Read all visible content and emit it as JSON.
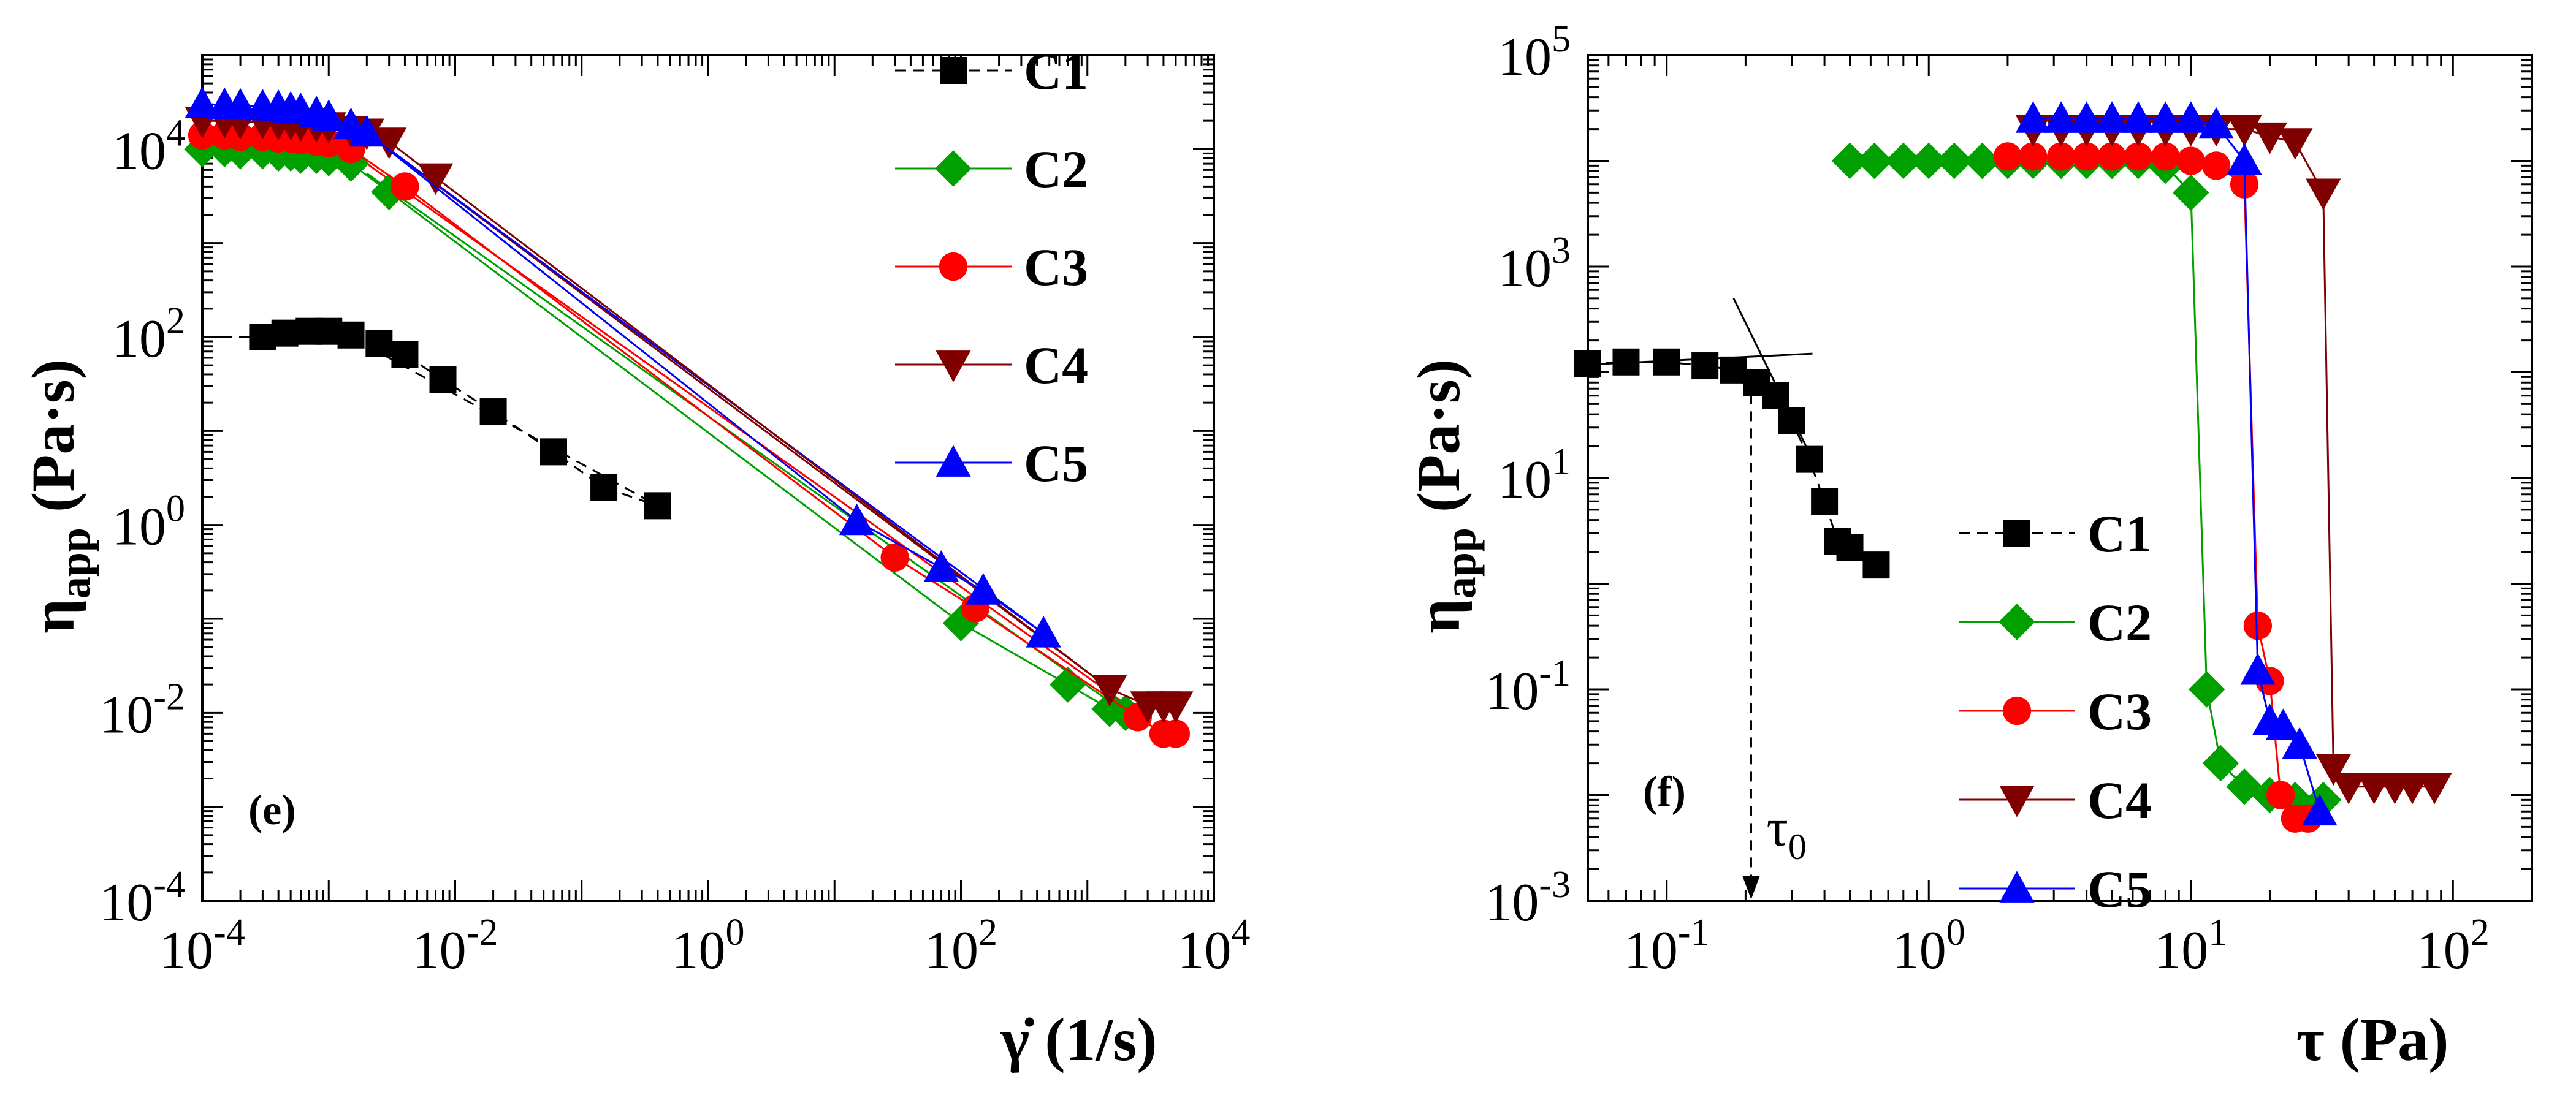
{
  "chart_data": [
    {
      "type": "scatter",
      "panel_label": "(e)",
      "scale": "log-log",
      "xlabel": "γ̇ (1/s)",
      "ylabel": "η_app (Pa·s)",
      "xlim": [
        0.0001,
        10000
      ],
      "ylim": [
        0.0001,
        100000
      ],
      "x_ticks": [
        {
          "base": "10",
          "exp": "-4"
        },
        {
          "base": "10",
          "exp": "-2"
        },
        {
          "base": "10",
          "exp": "0"
        },
        {
          "base": "10",
          "exp": "2"
        },
        {
          "base": "10",
          "exp": "4"
        }
      ],
      "y_ticks": [
        {
          "base": "10",
          "exp": "-4"
        },
        {
          "base": "10",
          "exp": "-2"
        },
        {
          "base": "10",
          "exp": "0"
        },
        {
          "base": "10",
          "exp": "2"
        },
        {
          "base": "10",
          "exp": "4"
        }
      ],
      "legend": {
        "position": "top-right"
      },
      "series": [
        {
          "name": "C1",
          "color": "#000000",
          "marker": "square",
          "x": [
            0.0003,
            0.00045,
            0.0007,
            0.001,
            0.0015,
            0.0025,
            0.004,
            0.008,
            0.02,
            0.06,
            0.15,
            0.4
          ],
          "y": [
            100,
            110,
            115,
            115,
            105,
            85,
            65,
            35,
            16,
            6,
            2.5,
            1.6
          ]
        },
        {
          "name": "C2",
          "color": "#00a000",
          "marker": "diamond",
          "x": [
            0.0001,
            0.00015,
            0.0002,
            0.0003,
            0.0004,
            0.0005,
            0.0006,
            0.0008,
            0.001,
            0.0015,
            0.003,
            100,
            700,
            1500,
            2000
          ],
          "y": [
            10000,
            10000,
            9500,
            9500,
            9000,
            9000,
            8500,
            8500,
            8000,
            7000,
            3500,
            0.09,
            0.02,
            0.011,
            0.01
          ]
        },
        {
          "name": "C3",
          "color": "#ff0000",
          "marker": "circle",
          "x": [
            0.0001,
            0.00015,
            0.0002,
            0.0003,
            0.0004,
            0.0005,
            0.0006,
            0.0008,
            0.001,
            0.0015,
            0.004,
            30,
            130,
            2500,
            4000,
            5000
          ],
          "y": [
            14000,
            14000,
            13500,
            13500,
            13000,
            13000,
            12500,
            12000,
            11500,
            10000,
            4000,
            0.45,
            0.13,
            0.009,
            0.006,
            0.006
          ]
        },
        {
          "name": "C4",
          "color": "#800000",
          "marker": "triangle-down",
          "x": [
            0.0001,
            0.00015,
            0.0002,
            0.0003,
            0.0004,
            0.0005,
            0.0006,
            0.0008,
            0.001,
            0.0015,
            0.002,
            0.003,
            0.007,
            1500,
            3000,
            4000,
            5000
          ],
          "y": [
            20000,
            20000,
            19500,
            19500,
            19000,
            19000,
            18500,
            18000,
            17500,
            16000,
            15000,
            12000,
            5000,
            0.018,
            0.012,
            0.012,
            0.012
          ]
        },
        {
          "name": "C5",
          "color": "#0000ff",
          "marker": "triangle-up",
          "x": [
            0.0001,
            0.00015,
            0.0002,
            0.0003,
            0.0004,
            0.0005,
            0.0006,
            0.0008,
            0.001,
            0.0015,
            0.002,
            15,
            70,
            150,
            450
          ],
          "y": [
            30000,
            29500,
            29000,
            28500,
            28000,
            27000,
            26000,
            24000,
            22000,
            18000,
            15000,
            1.1,
            0.35,
            0.2,
            0.07
          ]
        }
      ],
      "fits": [
        {
          "series": "C1",
          "x": [
            0.0001,
            0.0003
          ],
          "y": [
            100,
            100
          ],
          "dashed": true
        },
        {
          "series": "C1",
          "x": [
            0.0015,
            0.4
          ],
          "y": [
            100,
            1.6
          ],
          "dashed": true
        },
        {
          "series": "C2",
          "x": [
            0.002,
            2000
          ],
          "y": [
            5500,
            0.01
          ]
        },
        {
          "series": "C3",
          "x": [
            0.002,
            2500
          ],
          "y": [
            7000,
            0.01
          ]
        },
        {
          "series": "C4",
          "x": [
            0.002,
            1500
          ],
          "y": [
            15000,
            0.018
          ]
        },
        {
          "series": "C5",
          "x": [
            0.002,
            450
          ],
          "y": [
            15000,
            0.07
          ]
        }
      ]
    },
    {
      "type": "scatter",
      "panel_label": "(f)",
      "scale": "log-log",
      "xlabel": "τ (Pa)",
      "ylabel": "η_app (Pa·s)",
      "xlim": [
        0.05,
        200
      ],
      "ylim": [
        0.001,
        100000
      ],
      "x_ticks": [
        {
          "base": "10",
          "exp": "-1"
        },
        {
          "base": "10",
          "exp": "0"
        },
        {
          "base": "10",
          "exp": "1"
        },
        {
          "base": "10",
          "exp": "2"
        }
      ],
      "y_ticks": [
        {
          "base": "10",
          "exp": "-3"
        },
        {
          "base": "10",
          "exp": "-1"
        },
        {
          "base": "10",
          "exp": "1"
        },
        {
          "base": "10",
          "exp": "3"
        },
        {
          "base": "10",
          "exp": "5"
        }
      ],
      "legend": {
        "position": "center"
      },
      "annotation": {
        "label": "τ",
        "sub": "0",
        "x": 0.21
      },
      "series": [
        {
          "name": "C1",
          "color": "#000000",
          "marker": "square",
          "x": [
            0.05,
            0.07,
            0.1,
            0.14,
            0.18,
            0.22,
            0.26,
            0.3,
            0.35,
            0.4,
            0.45,
            0.5,
            0.63
          ],
          "y": [
            120,
            125,
            125,
            115,
            105,
            80,
            60,
            35,
            15,
            6,
            2.5,
            2.2,
            1.5
          ]
        },
        {
          "name": "C2",
          "color": "#00a000",
          "marker": "diamond",
          "x": [
            0.5,
            0.62,
            0.8,
            1.0,
            1.25,
            1.6,
            2.0,
            2.5,
            3.2,
            4.0,
            5.0,
            6.3,
            8.0,
            10.0,
            11.5,
            13.0,
            16.0,
            20.0,
            25.0,
            32.0
          ],
          "y": [
            10000,
            10000,
            10000,
            10000,
            10000,
            10000,
            10000,
            10000,
            10000,
            10000,
            10000,
            10000,
            9000,
            5000,
            0.1,
            0.02,
            0.012,
            0.01,
            0.009,
            0.009
          ]
        },
        {
          "name": "C3",
          "color": "#ff0000",
          "marker": "circle",
          "x": [
            2.0,
            2.5,
            3.2,
            4.0,
            5.0,
            6.3,
            8.0,
            10.0,
            12.5,
            16.0,
            18.0,
            20.0,
            22.0,
            25.0,
            28.0
          ],
          "y": [
            11000,
            11000,
            11000,
            11000,
            11000,
            11000,
            11000,
            10000,
            9000,
            6000,
            0.4,
            0.12,
            0.01,
            0.006,
            0.006
          ]
        },
        {
          "name": "C4",
          "color": "#800000",
          "marker": "triangle-down",
          "x": [
            2.5,
            3.2,
            4.0,
            5.0,
            6.3,
            8.0,
            10.0,
            12.5,
            16.0,
            20.0,
            25.0,
            32.0,
            35.0,
            40.0,
            50.0,
            60.0,
            70.0,
            85.0
          ],
          "y": [
            20000,
            20000,
            20000,
            20000,
            20000,
            20000,
            20000,
            20000,
            20000,
            17000,
            15000,
            5000,
            0.018,
            0.012,
            0.012,
            0.012,
            0.012,
            0.012
          ]
        },
        {
          "name": "C5",
          "color": "#0000ff",
          "marker": "triangle-up",
          "x": [
            2.5,
            3.2,
            4.0,
            5.0,
            6.3,
            8.0,
            10.0,
            12.5,
            16.0,
            18.0,
            20.0,
            22.5,
            26.0,
            31.0
          ],
          "y": [
            25000,
            25000,
            25000,
            25000,
            25000,
            25000,
            25000,
            22000,
            10000,
            0.15,
            0.05,
            0.045,
            0.03,
            0.007
          ]
        }
      ]
    }
  ]
}
